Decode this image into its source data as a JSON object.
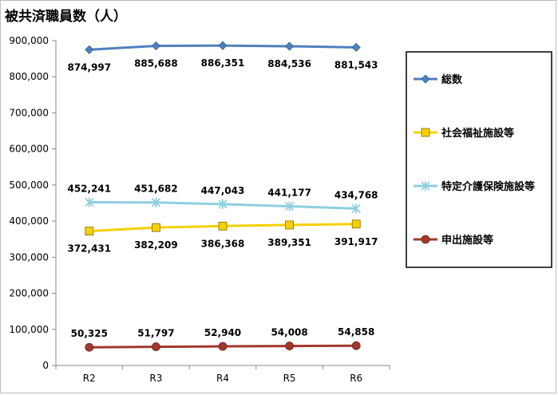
{
  "chart_data": {
    "type": "line",
    "title": "被共済職員数（人）",
    "categories": [
      "R2",
      "R3",
      "R4",
      "R5",
      "R6"
    ],
    "ylim": [
      0,
      900000
    ],
    "yticks": [
      "0",
      "100,000",
      "200,000",
      "300,000",
      "400,000",
      "500,000",
      "600,000",
      "700,000",
      "800,000",
      "900,000"
    ],
    "grid": false,
    "legend_position": "right",
    "series": [
      {
        "name": "総数",
        "values": [
          874997,
          885688,
          886351,
          884536,
          881543
        ],
        "labels": [
          "874,997",
          "885,688",
          "886,351",
          "884,536",
          "881,543"
        ],
        "color": "#4f81bd",
        "marker": "diamond",
        "label_pos": "below"
      },
      {
        "name": "社会福祉施設等",
        "values": [
          372431,
          382209,
          386368,
          389351,
          391917
        ],
        "labels": [
          "372,431",
          "382,209",
          "386,368",
          "389,351",
          "391,917"
        ],
        "color": "#f5d000",
        "marker": "square",
        "label_pos": "below"
      },
      {
        "name": "特定介護保険施設等",
        "values": [
          452241,
          451682,
          447043,
          441177,
          434768
        ],
        "labels": [
          "452,241",
          "451,682",
          "447,043",
          "441,177",
          "434,768"
        ],
        "color": "#8fcfe0",
        "marker": "star",
        "label_pos": "above"
      },
      {
        "name": "申出施設等",
        "values": [
          50325,
          51797,
          52940,
          54008,
          54858
        ],
        "labels": [
          "50,325",
          "51,797",
          "52,940",
          "54,008",
          "54,858"
        ],
        "color": "#a0392c",
        "marker": "circle",
        "label_pos": "above"
      }
    ]
  }
}
